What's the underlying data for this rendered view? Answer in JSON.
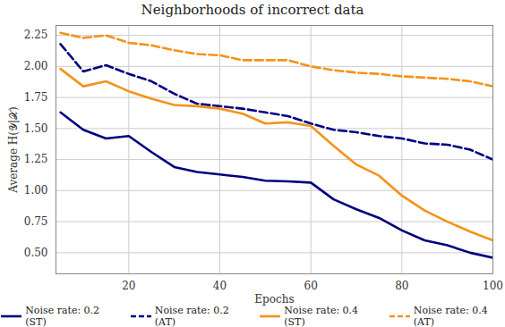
{
  "chart_data": {
    "type": "line",
    "title": "Neighborhoods of incorrect data",
    "x_label": "Epochs",
    "y_label": "Average H(𝒴|𝒳)",
    "x": [
      5,
      10,
      15,
      20,
      25,
      30,
      35,
      40,
      45,
      50,
      55,
      60,
      65,
      70,
      75,
      80,
      85,
      90,
      95,
      100
    ],
    "series": [
      {
        "name": "Noise rate: 0.2 (ST)",
        "color": "#00007f",
        "line_style": "solid",
        "values": [
          1.63,
          1.49,
          1.42,
          1.44,
          1.31,
          1.19,
          1.15,
          1.13,
          1.11,
          1.08,
          1.075,
          1.065,
          0.93,
          0.85,
          0.78,
          0.68,
          0.6,
          0.56,
          0.5,
          0.46
        ]
      },
      {
        "name": "Noise rate: 0.2 (AT)",
        "color": "#00007f",
        "line_style": "dashed",
        "values": [
          2.18,
          1.96,
          2.01,
          1.94,
          1.88,
          1.78,
          1.7,
          1.68,
          1.66,
          1.63,
          1.6,
          1.54,
          1.49,
          1.47,
          1.44,
          1.42,
          1.38,
          1.37,
          1.33,
          1.25
        ]
      },
      {
        "name": "Noise rate: 0.4 (ST)",
        "color": "#f5921b",
        "line_style": "solid",
        "values": [
          1.98,
          1.84,
          1.88,
          1.8,
          1.74,
          1.69,
          1.68,
          1.66,
          1.62,
          1.54,
          1.55,
          1.52,
          1.36,
          1.21,
          1.12,
          0.96,
          0.84,
          0.75,
          0.67,
          0.6
        ]
      },
      {
        "name": "Noise rate: 0.4 (AT)",
        "color": "#f5921b",
        "line_style": "dashed",
        "values": [
          2.27,
          2.23,
          2.25,
          2.19,
          2.17,
          2.13,
          2.1,
          2.09,
          2.05,
          2.05,
          2.05,
          2.0,
          1.97,
          1.95,
          1.94,
          1.92,
          1.91,
          1.9,
          1.88,
          1.84
        ]
      }
    ],
    "xlim": [
      4,
      100
    ],
    "xticks": [
      20,
      40,
      60,
      80,
      100
    ],
    "ylim": [
      0.33,
      2.33
    ],
    "yticks": [
      {
        "value": 0.5,
        "label": "0.50"
      },
      {
        "value": 0.75,
        "label": "0.75"
      },
      {
        "value": 1,
        "label": "1.00"
      },
      {
        "value": 1.25,
        "label": "1.25"
      },
      {
        "value": 1.5,
        "label": "1.50"
      },
      {
        "value": 1.75,
        "label": "1.75"
      },
      {
        "value": 2,
        "label": "2.00"
      },
      {
        "value": 2.25,
        "label": "2.25"
      }
    ],
    "grid": true,
    "legend": "bottom"
  }
}
